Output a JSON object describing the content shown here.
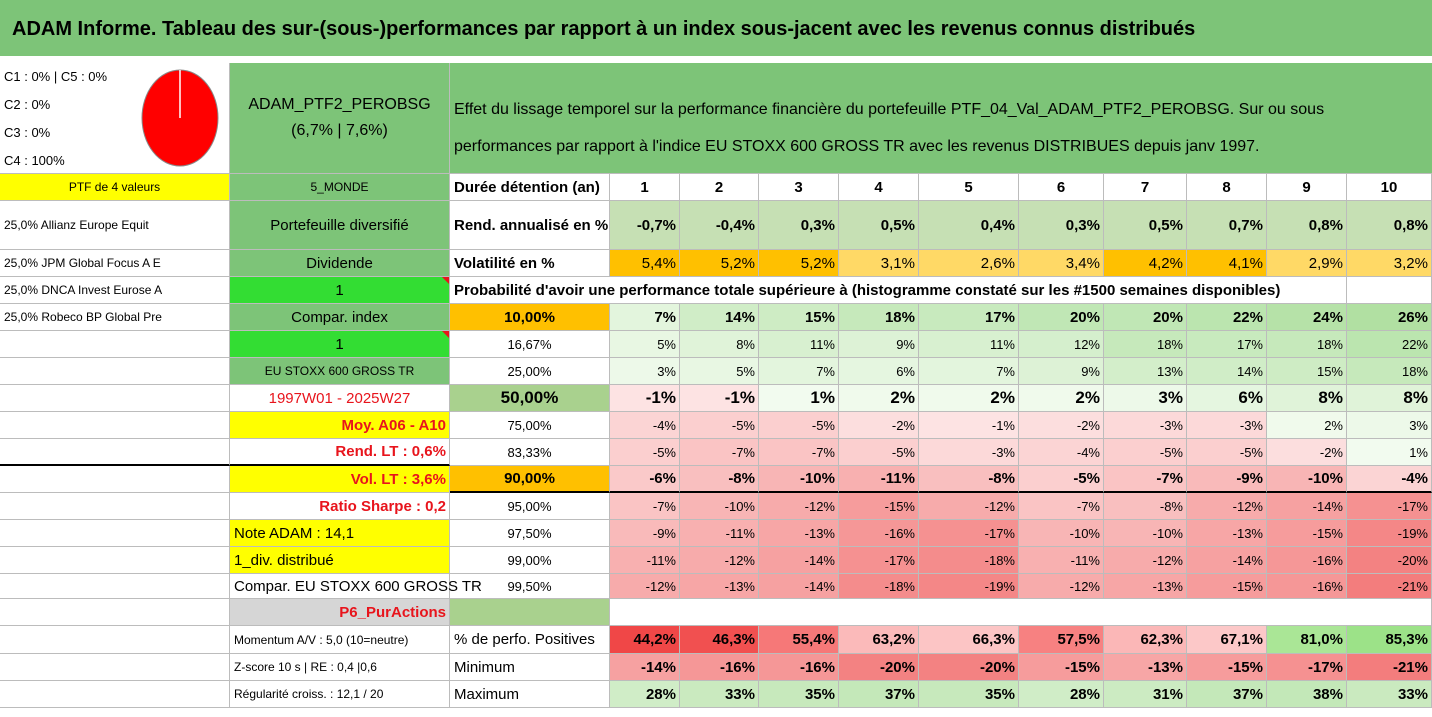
{
  "title": "ADAM Informe. Tableau des sur-(sous-)performances par rapport à un index sous-jacent avec les revenus connus distribués",
  "legend": {
    "lines": [
      "C1 : 0% | C5 : 0%",
      "C2 : 0%",
      "C3 : 0%",
      "C4 : 100%"
    ],
    "pie_color": "#ff0000",
    "pie_share_c4": 1.0
  },
  "portfolio": {
    "name": "ADAM_PTF2_PEROBSG",
    "returns": "(6,7% | 7,6%)"
  },
  "description": {
    "line1": "Effet du lissage temporel sur la performance financière du portefeuille PTF_04_Val_ADAM_PTF2_PEROBSG. Sur ou sous",
    "line2": "performances par rapport à l'indice EU STOXX 600 GROSS TR avec les revenus DISTRIBUES depuis janv 1997."
  },
  "col1": [
    "PTF de 4 valeurs",
    "25,0% Allianz Europe Equit",
    "25,0% JPM Global Focus A E",
    "25,0% DNCA Invest Eurose A",
    "25,0% Robeco BP Global Pre"
  ],
  "col2": {
    "monde": "5_MONDE",
    "portefeuille": "Portefeuille diversifié",
    "dividende": "Dividende",
    "one_a": "1",
    "compar_index": "Compar. index",
    "one_b": "1",
    "index_name": "EU STOXX 600 GROSS TR",
    "period": "1997W01 - 2025W27",
    "moy": "Moy. A06 - A10",
    "rend_lt": "Rend. LT : 0,6%",
    "vol_lt": "Vol. LT : 3,6%",
    "sharpe": "Ratio Sharpe : 0,2",
    "note": "Note ADAM : 14,1",
    "div": "1_div. distribué",
    "compar": "Compar. EU STOXX 600 GROSS TR",
    "p6": "P6_PurActions",
    "momentum": "Momentum A/V : 5,0 (10=neutre)",
    "zscore": "Z-score 10 s | RE : 0,4 |0,6",
    "regularite": "Régularité croiss. : 12,1 / 20"
  },
  "table": {
    "duree_label": "Durée détention (an)",
    "years": [
      "1",
      "2",
      "3",
      "4",
      "5",
      "6",
      "7",
      "8",
      "9",
      "10"
    ],
    "rend_label": "Rend. annualisé en %",
    "rend": [
      "-0,7%",
      "-0,4%",
      "0,3%",
      "0,5%",
      "0,4%",
      "0,3%",
      "0,5%",
      "0,7%",
      "0,8%",
      "0,8%"
    ],
    "vol_label": "Volatilité en %",
    "vol": [
      "5,4%",
      "5,2%",
      "5,2%",
      "3,1%",
      "2,6%",
      "3,4%",
      "4,2%",
      "4,1%",
      "2,9%",
      "3,2%"
    ],
    "prob_label": "Probabilité d'avoir une performance totale supérieure à (histogramme constaté sur les #1500 semaines disponibles)",
    "quantiles": [
      {
        "p": "10,00%",
        "vals": [
          "7%",
          "14%",
          "15%",
          "18%",
          "17%",
          "20%",
          "20%",
          "22%",
          "24%",
          "26%"
        ]
      },
      {
        "p": "16,67%",
        "vals": [
          "5%",
          "8%",
          "11%",
          "9%",
          "11%",
          "12%",
          "18%",
          "17%",
          "18%",
          "22%"
        ]
      },
      {
        "p": "25,00%",
        "vals": [
          "3%",
          "5%",
          "7%",
          "6%",
          "7%",
          "9%",
          "13%",
          "14%",
          "15%",
          "18%"
        ]
      },
      {
        "p": "50,00%",
        "vals": [
          "-1%",
          "-1%",
          "1%",
          "2%",
          "2%",
          "2%",
          "3%",
          "6%",
          "8%",
          "8%"
        ]
      },
      {
        "p": "75,00%",
        "vals": [
          "-4%",
          "-5%",
          "-5%",
          "-2%",
          "-1%",
          "-2%",
          "-3%",
          "-3%",
          "2%",
          "3%"
        ]
      },
      {
        "p": "83,33%",
        "vals": [
          "-5%",
          "-7%",
          "-7%",
          "-5%",
          "-3%",
          "-4%",
          "-5%",
          "-5%",
          "-2%",
          "1%"
        ]
      },
      {
        "p": "90,00%",
        "vals": [
          "-6%",
          "-8%",
          "-10%",
          "-11%",
          "-8%",
          "-5%",
          "-7%",
          "-9%",
          "-10%",
          "-4%"
        ]
      },
      {
        "p": "95,00%",
        "vals": [
          "-7%",
          "-10%",
          "-12%",
          "-15%",
          "-12%",
          "-7%",
          "-8%",
          "-12%",
          "-14%",
          "-17%"
        ]
      },
      {
        "p": "97,50%",
        "vals": [
          "-9%",
          "-11%",
          "-13%",
          "-16%",
          "-17%",
          "-10%",
          "-10%",
          "-13%",
          "-15%",
          "-19%"
        ]
      },
      {
        "p": "99,00%",
        "vals": [
          "-11%",
          "-12%",
          "-14%",
          "-17%",
          "-18%",
          "-11%",
          "-12%",
          "-14%",
          "-16%",
          "-20%"
        ]
      },
      {
        "p": "99,50%",
        "vals": [
          "-12%",
          "-13%",
          "-14%",
          "-18%",
          "-19%",
          "-12%",
          "-13%",
          "-15%",
          "-16%",
          "-21%"
        ]
      }
    ],
    "pos_label": "% de perfo. Positives",
    "pos": [
      "44,2%",
      "46,3%",
      "55,4%",
      "63,2%",
      "66,3%",
      "57,5%",
      "62,3%",
      "67,1%",
      "81,0%",
      "85,3%"
    ],
    "min_label": "Minimum",
    "min": [
      "-14%",
      "-16%",
      "-16%",
      "-20%",
      "-20%",
      "-15%",
      "-13%",
      "-15%",
      "-17%",
      "-21%"
    ],
    "max_label": "Maximum",
    "max": [
      "28%",
      "33%",
      "35%",
      "37%",
      "35%",
      "28%",
      "31%",
      "37%",
      "38%",
      "33%"
    ]
  },
  "colors": {
    "header_green": "#7dc478",
    "yellow": "#ffff00",
    "orange": "#ffc000",
    "bright_green": "#33dd33",
    "red_text": "#e8141c"
  }
}
